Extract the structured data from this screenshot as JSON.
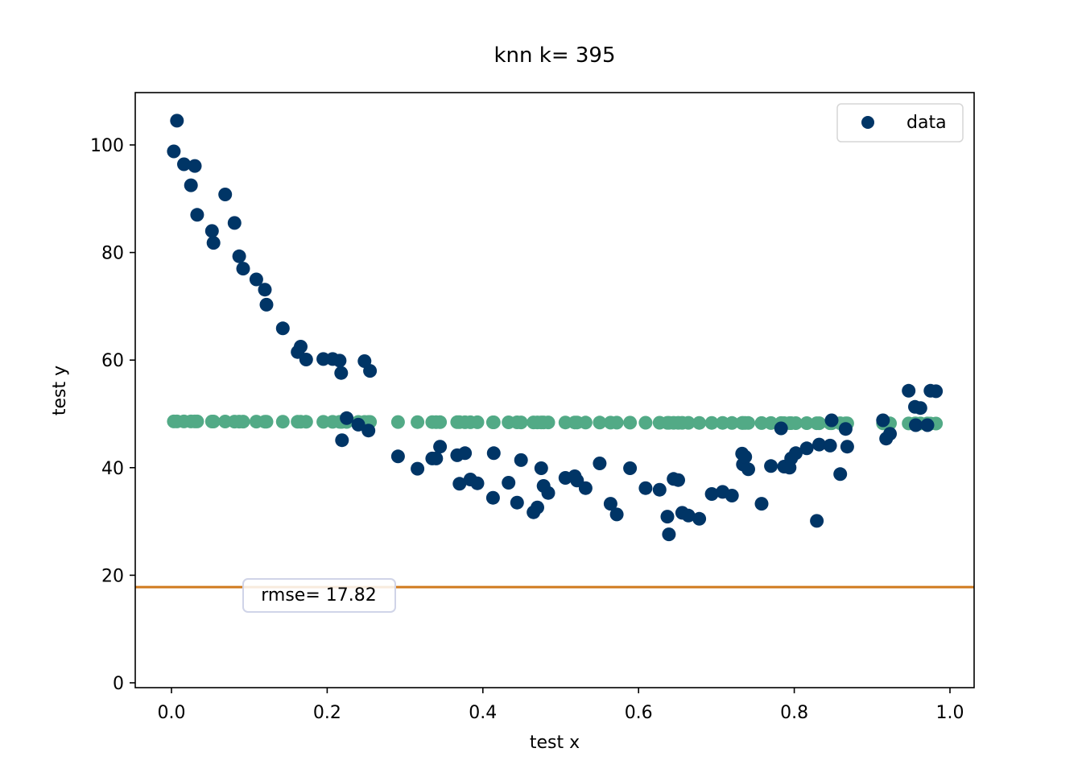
{
  "chart_data": {
    "type": "scatter",
    "title": "knn k= 395",
    "xlabel": "test x",
    "ylabel": "test y",
    "xlim": [
      -0.05,
      1.03
    ],
    "ylim": [
      -1,
      110
    ],
    "x_ticks": [
      0.0,
      0.2,
      0.4,
      0.6,
      0.8,
      1.0
    ],
    "x_tick_labels": [
      "0.0",
      "0.2",
      "0.4",
      "0.6",
      "0.8",
      "1.0"
    ],
    "y_ticks": [
      0,
      20,
      40,
      60,
      80,
      100
    ],
    "y_tick_labels": [
      "0",
      "20",
      "40",
      "60",
      "80",
      "100"
    ],
    "grid": false,
    "legend": {
      "position": "top-right",
      "entries": [
        "data"
      ]
    },
    "colors": {
      "data": "#003566",
      "prediction": "#52aa86",
      "rmse_line": "#d07a1e"
    },
    "rmse_label": "rmse= 17.82",
    "rmse_line_y": 17.8,
    "series": [
      {
        "name": "data",
        "points": [
          [
            0.003,
            98.8
          ],
          [
            0.007,
            104.5
          ],
          [
            0.016,
            96.4
          ],
          [
            0.025,
            92.5
          ],
          [
            0.03,
            96.1
          ],
          [
            0.033,
            87.0
          ],
          [
            0.052,
            84.0
          ],
          [
            0.054,
            81.8
          ],
          [
            0.069,
            90.8
          ],
          [
            0.081,
            85.5
          ],
          [
            0.087,
            79.3
          ],
          [
            0.092,
            77.0
          ],
          [
            0.109,
            75.0
          ],
          [
            0.12,
            73.1
          ],
          [
            0.122,
            70.3
          ],
          [
            0.143,
            65.9
          ],
          [
            0.162,
            61.5
          ],
          [
            0.166,
            62.5
          ],
          [
            0.173,
            60.1
          ],
          [
            0.195,
            60.2
          ],
          [
            0.207,
            60.2
          ],
          [
            0.216,
            59.9
          ],
          [
            0.218,
            57.6
          ],
          [
            0.219,
            45.1
          ],
          [
            0.225,
            49.2
          ],
          [
            0.24,
            48.0
          ],
          [
            0.248,
            59.8
          ],
          [
            0.253,
            46.9
          ],
          [
            0.255,
            58.0
          ],
          [
            0.291,
            42.1
          ],
          [
            0.316,
            39.8
          ],
          [
            0.335,
            41.7
          ],
          [
            0.34,
            41.7
          ],
          [
            0.345,
            43.9
          ],
          [
            0.367,
            42.3
          ],
          [
            0.37,
            37.0
          ],
          [
            0.377,
            42.7
          ],
          [
            0.384,
            37.8
          ],
          [
            0.393,
            37.1
          ],
          [
            0.413,
            34.4
          ],
          [
            0.414,
            42.7
          ],
          [
            0.433,
            37.2
          ],
          [
            0.444,
            33.5
          ],
          [
            0.449,
            41.4
          ],
          [
            0.465,
            31.7
          ],
          [
            0.47,
            32.6
          ],
          [
            0.475,
            39.9
          ],
          [
            0.478,
            36.6
          ],
          [
            0.484,
            35.3
          ],
          [
            0.506,
            38.1
          ],
          [
            0.518,
            38.4
          ],
          [
            0.521,
            37.6
          ],
          [
            0.532,
            36.2
          ],
          [
            0.55,
            40.8
          ],
          [
            0.564,
            33.3
          ],
          [
            0.572,
            31.3
          ],
          [
            0.589,
            39.9
          ],
          [
            0.609,
            36.2
          ],
          [
            0.627,
            35.9
          ],
          [
            0.637,
            30.9
          ],
          [
            0.639,
            27.6
          ],
          [
            0.645,
            37.9
          ],
          [
            0.651,
            37.7
          ],
          [
            0.656,
            31.6
          ],
          [
            0.664,
            31.1
          ],
          [
            0.678,
            30.5
          ],
          [
            0.694,
            35.1
          ],
          [
            0.708,
            35.5
          ],
          [
            0.72,
            34.8
          ],
          [
            0.733,
            42.6
          ],
          [
            0.734,
            40.6
          ],
          [
            0.737,
            42.0
          ],
          [
            0.741,
            39.7
          ],
          [
            0.758,
            33.3
          ],
          [
            0.77,
            40.3
          ],
          [
            0.783,
            47.3
          ],
          [
            0.787,
            40.2
          ],
          [
            0.794,
            40.0
          ],
          [
            0.796,
            41.7
          ],
          [
            0.802,
            42.7
          ],
          [
            0.816,
            43.6
          ],
          [
            0.829,
            30.1
          ],
          [
            0.832,
            44.3
          ],
          [
            0.846,
            44.1
          ],
          [
            0.848,
            48.8
          ],
          [
            0.859,
            38.8
          ],
          [
            0.866,
            47.2
          ],
          [
            0.868,
            43.9
          ],
          [
            0.914,
            48.8
          ],
          [
            0.918,
            45.4
          ],
          [
            0.923,
            46.3
          ],
          [
            0.947,
            54.3
          ],
          [
            0.955,
            51.3
          ],
          [
            0.956,
            47.9
          ],
          [
            0.962,
            51.1
          ],
          [
            0.971,
            47.9
          ],
          [
            0.975,
            54.3
          ],
          [
            0.982,
            54.2
          ]
        ]
      },
      {
        "name": "",
        "values_y_left": 48.6,
        "values_y_right": 48.2,
        "x": [
          0.003,
          0.007,
          0.016,
          0.025,
          0.03,
          0.033,
          0.052,
          0.054,
          0.069,
          0.081,
          0.087,
          0.092,
          0.109,
          0.12,
          0.122,
          0.143,
          0.162,
          0.166,
          0.173,
          0.195,
          0.207,
          0.216,
          0.218,
          0.219,
          0.225,
          0.24,
          0.248,
          0.253,
          0.255,
          0.291,
          0.316,
          0.335,
          0.34,
          0.345,
          0.367,
          0.37,
          0.377,
          0.384,
          0.393,
          0.413,
          0.414,
          0.433,
          0.444,
          0.449,
          0.465,
          0.47,
          0.475,
          0.478,
          0.484,
          0.506,
          0.518,
          0.521,
          0.532,
          0.55,
          0.564,
          0.572,
          0.589,
          0.609,
          0.627,
          0.637,
          0.639,
          0.645,
          0.651,
          0.656,
          0.664,
          0.678,
          0.694,
          0.708,
          0.72,
          0.733,
          0.734,
          0.737,
          0.741,
          0.758,
          0.77,
          0.783,
          0.787,
          0.794,
          0.796,
          0.802,
          0.816,
          0.829,
          0.832,
          0.846,
          0.848,
          0.859,
          0.866,
          0.868,
          0.914,
          0.918,
          0.923,
          0.947,
          0.955,
          0.956,
          0.962,
          0.971,
          0.975,
          0.982
        ]
      }
    ]
  }
}
